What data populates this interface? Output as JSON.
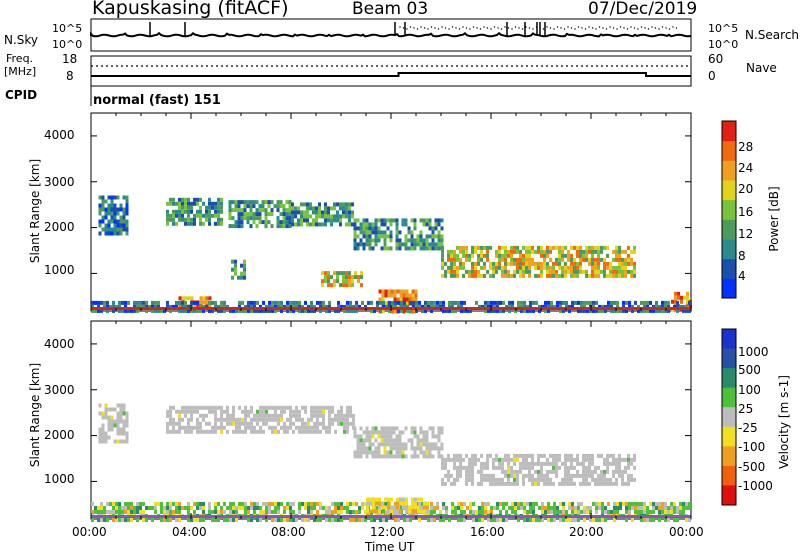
{
  "header": {
    "station": "Kapuskasing (fitACF)",
    "beam": "Beam 03",
    "date": "07/Dec/2019"
  },
  "noise_panel": {
    "left_label": "N.Sky",
    "left_ticks": [
      "10^5",
      "10^0"
    ],
    "right_ticks": [
      "10^5",
      "10^0"
    ],
    "right_label": "N.Search"
  },
  "freq_panel": {
    "left_label_1": "Freq.",
    "left_label_2": "[MHz]",
    "left_ticks": [
      "18",
      "8"
    ],
    "right_ticks": [
      "60",
      "0"
    ],
    "right_label": "Nave"
  },
  "cpid": {
    "label": "CPID",
    "value": "normal (fast) 151"
  },
  "chart_data": [
    {
      "type": "heatmap",
      "quantity": "Power",
      "ylabel": "Slant Range [km]",
      "ylim": [
        180,
        4500
      ],
      "yticks": [
        "1000",
        "2000",
        "3000",
        "4000"
      ],
      "colorbar_label": "Power [dB]",
      "colorbar_ticks": [
        "4",
        "8",
        "12",
        "16",
        "20",
        "24",
        "28"
      ],
      "colorbar_colors": [
        "#0033ff",
        "#1a4fb0",
        "#2a8a8c",
        "#4c9b5c",
        "#78c23c",
        "#e0d31a",
        "#f0a020",
        "#f06a10",
        "#e02010"
      ],
      "echo_regions": [
        {
          "t0": 0.3,
          "t1": 1.4,
          "r0": 1900,
          "r1": 2700,
          "level": "low"
        },
        {
          "t0": 3.0,
          "t1": 5.2,
          "r0": 2100,
          "r1": 2650,
          "level": "mid"
        },
        {
          "t0": 5.5,
          "t1": 8.0,
          "r0": 2050,
          "r1": 2600,
          "level": "mid"
        },
        {
          "t0": 8.0,
          "t1": 10.5,
          "r0": 2050,
          "r1": 2550,
          "level": "mid"
        },
        {
          "t0": 10.5,
          "t1": 14.0,
          "r0": 1550,
          "r1": 2200,
          "level": "mid"
        },
        {
          "t0": 14.0,
          "t1": 21.8,
          "r0": 950,
          "r1": 1600,
          "level": "high"
        },
        {
          "t0": 9.2,
          "t1": 10.8,
          "r0": 750,
          "r1": 1050,
          "level": "high"
        },
        {
          "t0": 5.6,
          "t1": 6.2,
          "r0": 900,
          "r1": 1300,
          "level": "mid"
        },
        {
          "t0": 3.5,
          "t1": 4.8,
          "r0": 200,
          "r1": 500,
          "level": "very-high"
        },
        {
          "t0": 11.5,
          "t1": 13.0,
          "r0": 200,
          "r1": 650,
          "level": "very-high"
        },
        {
          "t0": 23.2,
          "t1": 24.0,
          "r0": 200,
          "r1": 600,
          "level": "very-high"
        },
        {
          "t0": 0.0,
          "t1": 24.0,
          "r0": 180,
          "r1": 400,
          "level": "low"
        }
      ]
    },
    {
      "type": "heatmap",
      "quantity": "Velocity",
      "xlabel": "Time UT",
      "xticks": [
        "00:00",
        "04:00",
        "08:00",
        "12:00",
        "16:00",
        "20:00",
        "00:00"
      ],
      "ylabel": "Slant Range [km]",
      "ylim": [
        180,
        4500
      ],
      "yticks": [
        "1000",
        "2000",
        "3000",
        "4000"
      ],
      "colorbar_label": "Velocity [m s-1]",
      "colorbar_ticks": [
        "1000",
        "500",
        "100",
        "25",
        "-25",
        "-100",
        "-500",
        "-1000"
      ],
      "colorbar_colors": [
        "#1a33cc",
        "#2a4fa8",
        "#2a8a6c",
        "#4fc03c",
        "#bdbdbd",
        "#f0e020",
        "#f0a020",
        "#f06010",
        "#e01010"
      ],
      "echo_regions": [
        {
          "t0": 0.3,
          "t1": 1.4,
          "r0": 1900,
          "r1": 2700,
          "level": "ground"
        },
        {
          "t0": 3.0,
          "t1": 10.5,
          "r0": 2050,
          "r1": 2650,
          "level": "ground"
        },
        {
          "t0": 10.5,
          "t1": 14.0,
          "r0": 1550,
          "r1": 2200,
          "level": "ground"
        },
        {
          "t0": 14.0,
          "t1": 21.8,
          "r0": 950,
          "r1": 1600,
          "level": "ground"
        },
        {
          "t0": 0.0,
          "t1": 24.0,
          "r0": 180,
          "r1": 550,
          "level": "mixed"
        },
        {
          "t0": 11.0,
          "t1": 13.5,
          "r0": 250,
          "r1": 650,
          "level": "negative"
        }
      ]
    }
  ]
}
